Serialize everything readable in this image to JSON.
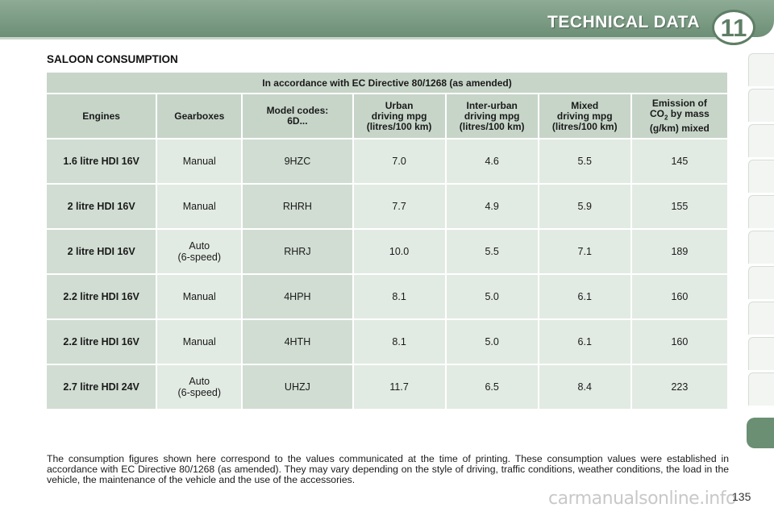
{
  "header": {
    "title": "TECHNICAL DATA",
    "chapter": "11"
  },
  "section_title": "SALOON CONSUMPTION",
  "table": {
    "caption": "In accordance with EC Directive 80/1268 (as amended)",
    "headers": {
      "engines": "Engines",
      "gearboxes": "Gearboxes",
      "model_codes": [
        "Model codes:",
        "6D..."
      ],
      "urban": [
        "Urban",
        "driving mpg",
        "(litres/100 km)"
      ],
      "inter_urban": [
        "Inter-urban",
        "driving mpg",
        "(litres/100 km)"
      ],
      "mixed": [
        "Mixed",
        "driving mpg",
        "(litres/100 km)"
      ],
      "emission": {
        "line1": "Emission of",
        "co": "CO",
        "sub": "2",
        "rest": " by mass",
        "line3": "(g/km) mixed"
      }
    },
    "rows": [
      {
        "engine": "1.6 litre HDI 16V",
        "gearbox": [
          "Manual"
        ],
        "code": "9HZC",
        "urban": "7.0",
        "inter_urban": "4.6",
        "mixed": "5.5",
        "co2": "145"
      },
      {
        "engine": "2 litre HDI 16V",
        "gearbox": [
          "Manual"
        ],
        "code": "RHRH",
        "urban": "7.7",
        "inter_urban": "4.9",
        "mixed": "5.9",
        "co2": "155"
      },
      {
        "engine": "2 litre HDI 16V",
        "gearbox": [
          "Auto",
          "(6-speed)"
        ],
        "code": "RHRJ",
        "urban": "10.0",
        "inter_urban": "5.5",
        "mixed": "7.1",
        "co2": "189"
      },
      {
        "engine": "2.2 litre HDI 16V",
        "gearbox": [
          "Manual"
        ],
        "code": "4HPH",
        "urban": "8.1",
        "inter_urban": "5.0",
        "mixed": "6.1",
        "co2": "160"
      },
      {
        "engine": "2.2 litre HDI 16V",
        "gearbox": [
          "Manual"
        ],
        "code": "4HTH",
        "urban": "8.1",
        "inter_urban": "5.0",
        "mixed": "6.1",
        "co2": "160"
      },
      {
        "engine": "2.7 litre HDI 24V",
        "gearbox": [
          "Auto",
          "(6-speed)"
        ],
        "code": "UHZJ",
        "urban": "11.7",
        "inter_urban": "6.5",
        "mixed": "8.4",
        "co2": "223"
      }
    ]
  },
  "note": "The consumption figures shown here correspond to the values communicated at the time of printing. These consumption values were established in accordance with EC Directive 80/1268 (as amended). They may vary depending on the style of driving, traffic conditions, weather conditions, the load in the vehicle, the maintenance of the vehicle and the use of the accessories.",
  "page_number": "135",
  "watermark": "carmanualsonline.info",
  "colors": {
    "header_band": "#6d8f76",
    "table_header": "#c7d5c9",
    "cell_dark": "#d1ddd3",
    "cell_light": "#e2ebe3",
    "active_tab": "#6a8f73"
  }
}
